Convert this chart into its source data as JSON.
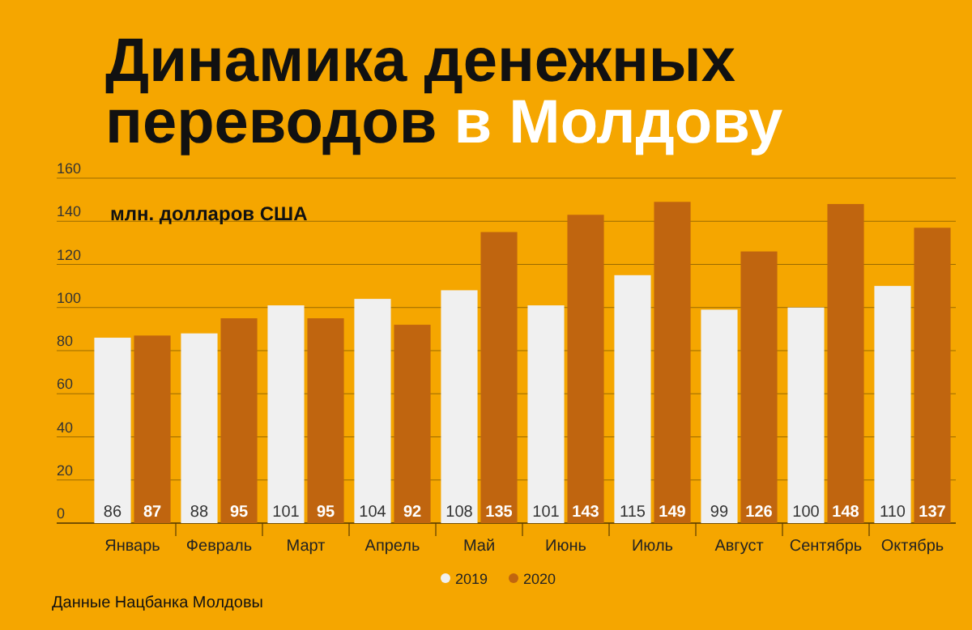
{
  "chart_data": {
    "type": "bar",
    "title": "Динамика денежных переводов в Молдову",
    "ylabel": "млн. долларов США",
    "categories": [
      "Январь",
      "Февраль",
      "Март",
      "Апрель",
      "Май",
      "Июнь",
      "Июль",
      "Август",
      "Сентябрь",
      "Октябрь"
    ],
    "series": [
      {
        "name": "2019",
        "color": "#f0f0f0",
        "values": [
          86,
          88,
          101,
          104,
          108,
          101,
          115,
          99,
          100,
          110
        ]
      },
      {
        "name": "2020",
        "color": "#c0650f",
        "values": [
          87,
          95,
          95,
          92,
          135,
          143,
          149,
          126,
          148,
          137
        ]
      }
    ],
    "ylim": [
      0,
      160
    ],
    "yticks": [
      0,
      20,
      40,
      60,
      80,
      100,
      120,
      140,
      160
    ],
    "grid": "y",
    "legend": "bottom",
    "data_labels": true,
    "annotations": [
      "Данные Нацбанка Молдовы"
    ]
  }
}
